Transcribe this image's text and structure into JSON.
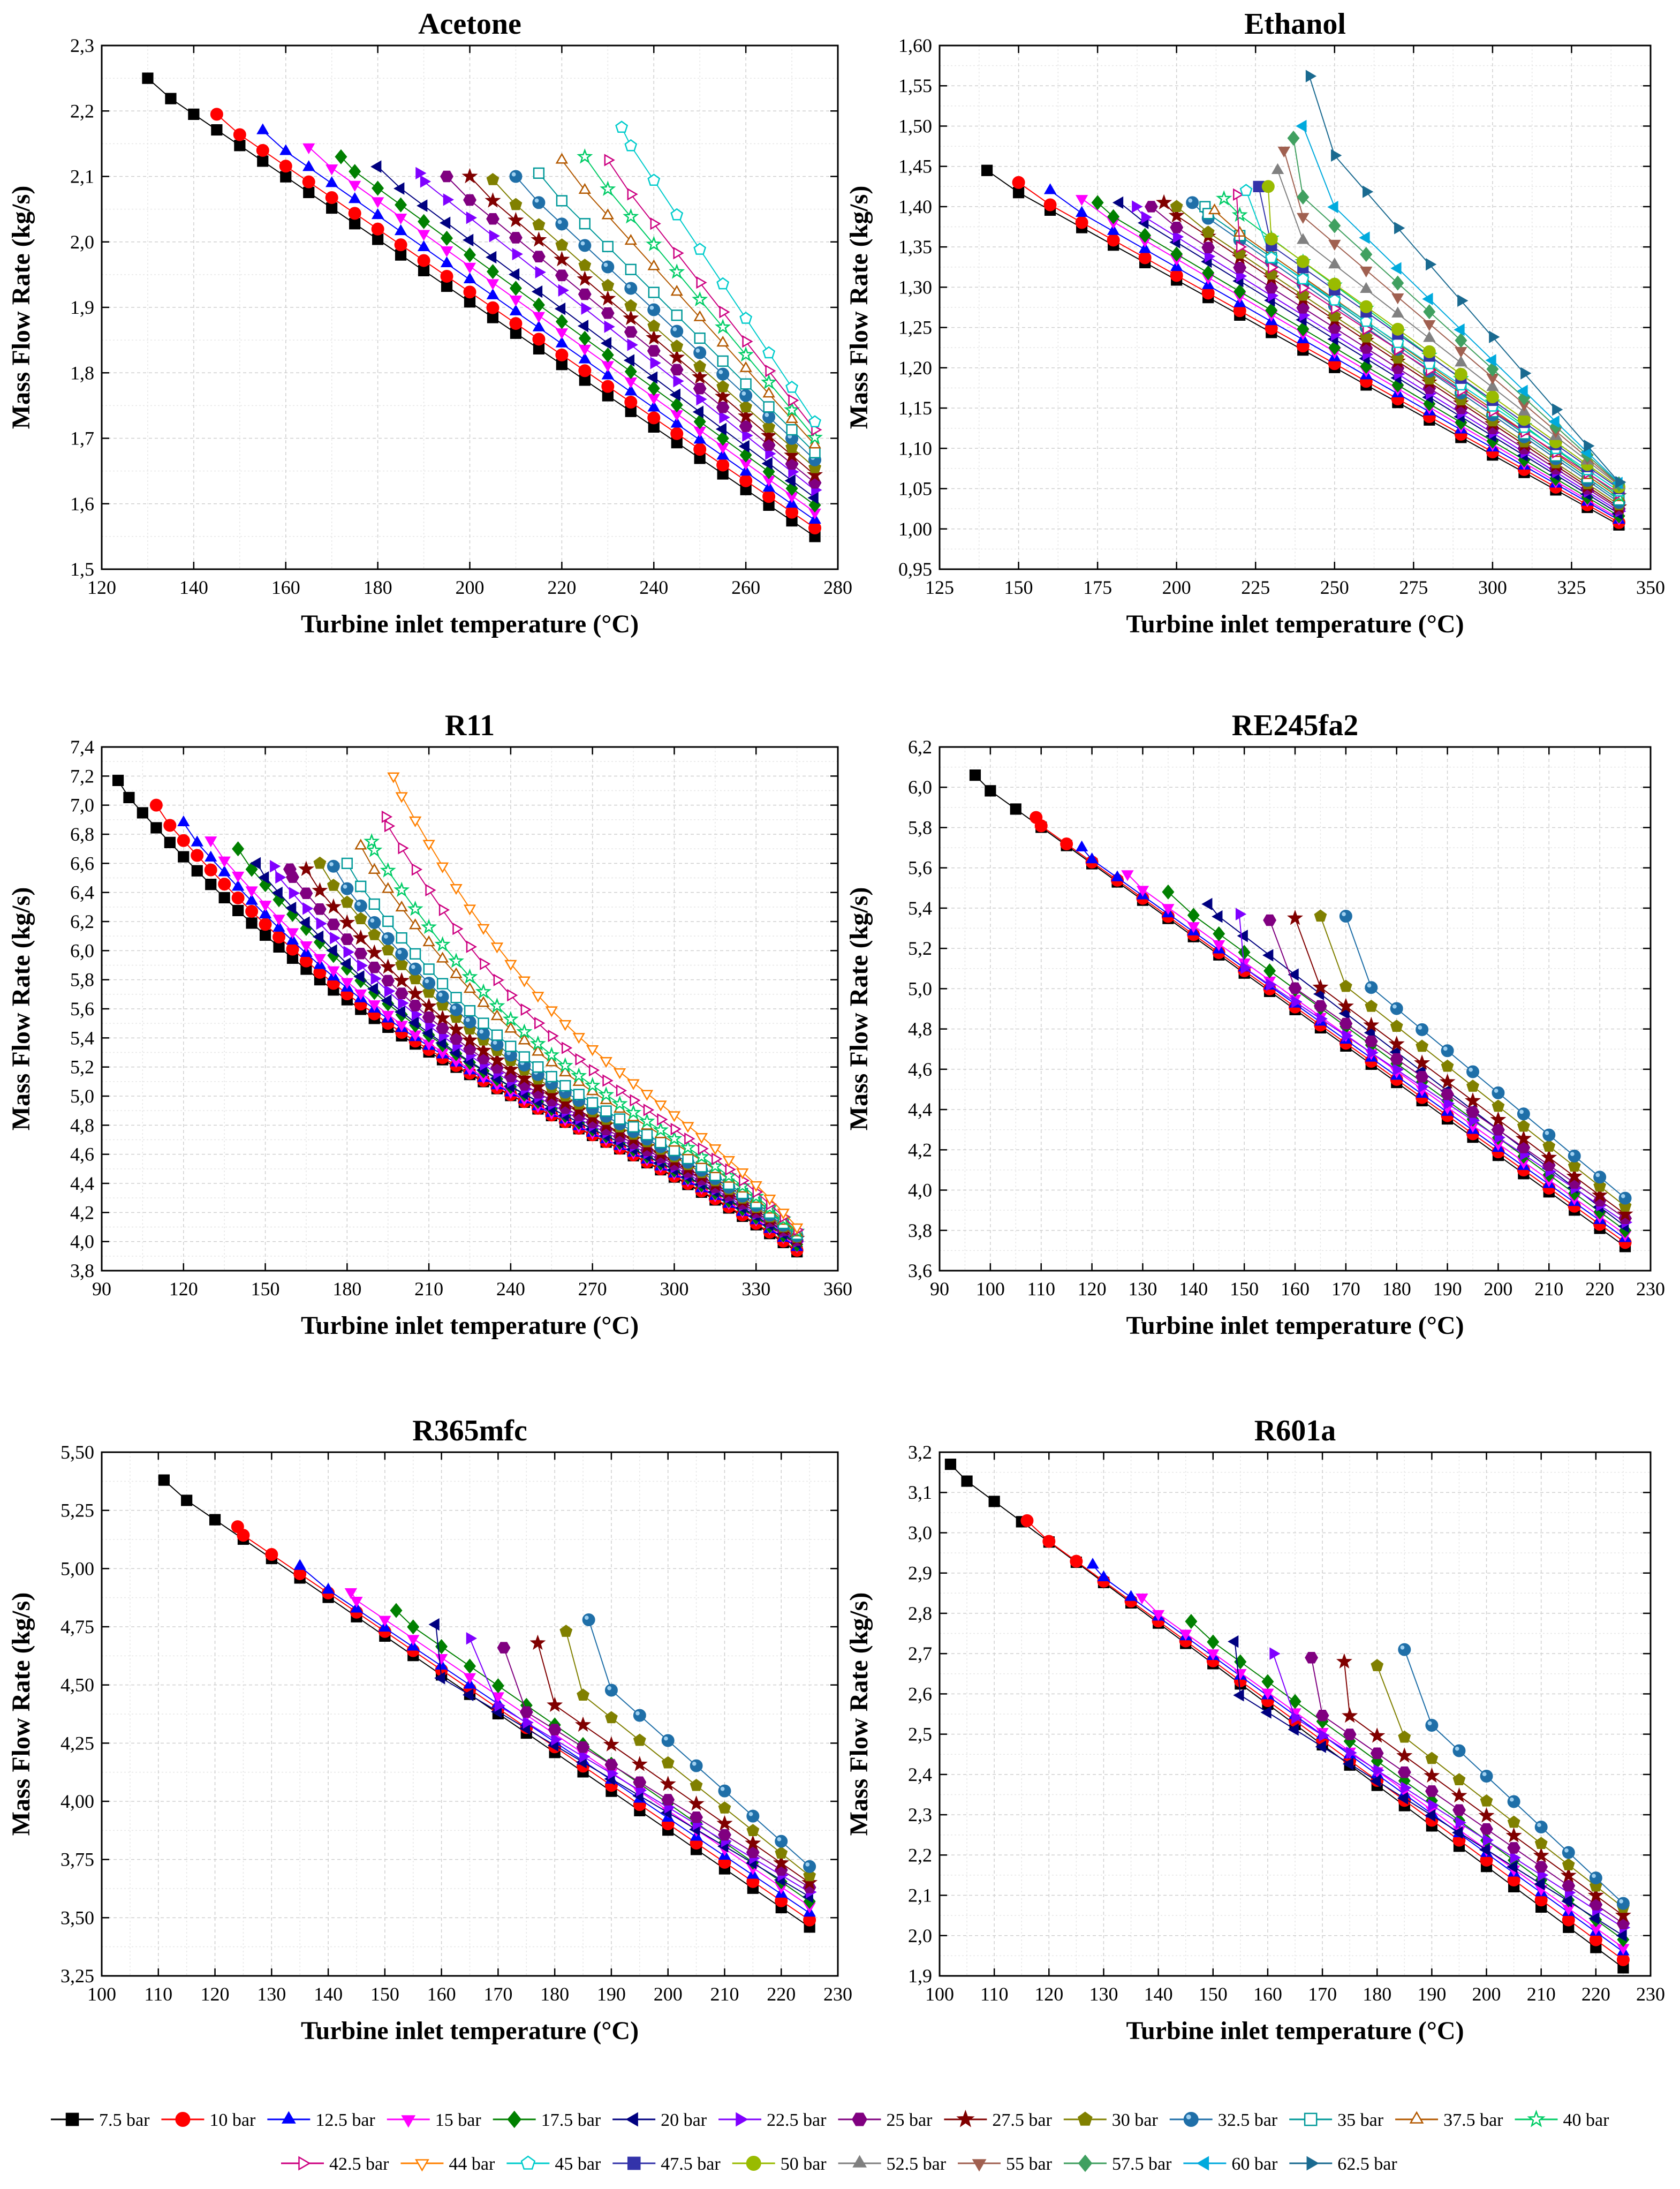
{
  "legend": {
    "items": [
      {
        "name": "7.5 bar",
        "color": "#000000",
        "marker": "square",
        "filled": true
      },
      {
        "name": "10 bar",
        "color": "#ff0000",
        "marker": "circle",
        "filled": true
      },
      {
        "name": "12.5 bar",
        "color": "#0000ff",
        "marker": "triangle-up",
        "filled": true
      },
      {
        "name": "15 bar",
        "color": "#ff00ff",
        "marker": "triangle-down",
        "filled": true
      },
      {
        "name": "17.5 bar",
        "color": "#008000",
        "marker": "diamond",
        "filled": true
      },
      {
        "name": "20 bar",
        "color": "#000080",
        "marker": "triangle-left",
        "filled": true
      },
      {
        "name": "22.5 bar",
        "color": "#8000ff",
        "marker": "triangle-right",
        "filled": true
      },
      {
        "name": "25 bar",
        "color": "#800080",
        "marker": "hexagon",
        "filled": true
      },
      {
        "name": "27.5 bar",
        "color": "#800000",
        "marker": "star",
        "filled": true
      },
      {
        "name": "30 bar",
        "color": "#808000",
        "marker": "pentagon",
        "filled": true
      },
      {
        "name": "32.5 bar",
        "color": "#1f6fa8",
        "marker": "sphere",
        "filled": true
      },
      {
        "name": "35 bar",
        "color": "#009999",
        "marker": "square",
        "filled": false
      },
      {
        "name": "37.5 bar",
        "color": "#b35900",
        "marker": "triangle-up",
        "filled": false
      },
      {
        "name": "40 bar",
        "color": "#00cc66",
        "marker": "star",
        "filled": false
      },
      {
        "name": "42.5 bar",
        "color": "#cc0080",
        "marker": "triangle-right",
        "filled": false
      },
      {
        "name": "44 bar",
        "color": "#ff8000",
        "marker": "triangle-down",
        "filled": false
      },
      {
        "name": "45 bar",
        "color": "#00cccc",
        "marker": "pentagon",
        "filled": false
      },
      {
        "name": "47.5 bar",
        "color": "#3333aa",
        "marker": "square",
        "filled": true
      },
      {
        "name": "50 bar",
        "color": "#99bb00",
        "marker": "circle",
        "filled": true
      },
      {
        "name": "52.5 bar",
        "color": "#808080",
        "marker": "triangle-up",
        "filled": true
      },
      {
        "name": "55 bar",
        "color": "#a06050",
        "marker": "triangle-down",
        "filled": true
      },
      {
        "name": "57.5 bar",
        "color": "#40a060",
        "marker": "diamond",
        "filled": true
      },
      {
        "name": "60 bar",
        "color": "#00aadd",
        "marker": "triangle-left",
        "filled": true
      },
      {
        "name": "62.5 bar",
        "color": "#1a6a90",
        "marker": "triangle-right",
        "filled": true
      }
    ]
  },
  "chart_data": [
    {
      "type": "scatter",
      "title": "Acetone",
      "xlabel": "Turbine inlet temperature (°C)",
      "ylabel": "Mass Flow Rate (kg/s)",
      "xlim": [
        120,
        280
      ],
      "ylim": [
        1.5,
        2.3
      ],
      "xticks": [
        "120",
        "140",
        "160",
        "180",
        "200",
        "220",
        "240",
        "260",
        "280"
      ],
      "yticks": [
        "1,5",
        "1,6",
        "1,7",
        "1,8",
        "1,9",
        "2,0",
        "2,1",
        "2,2",
        "2,3"
      ],
      "x_end": 275,
      "step": 5,
      "series": [
        {
          "name": "7.5 bar",
          "start_x": 130,
          "start_y": 2.25,
          "end_y": 1.55
        },
        {
          "name": "10 bar",
          "start_x": 145,
          "start_y": 2.195,
          "end_y": 1.563
        },
        {
          "name": "12.5 bar",
          "start_x": 155,
          "start_y": 2.17,
          "end_y": 1.575
        },
        {
          "name": "15 bar",
          "start_x": 165,
          "start_y": 2.145,
          "end_y": 1.587
        },
        {
          "name": "17.5 bar",
          "start_x": 172,
          "start_y": 2.13,
          "end_y": 1.598
        },
        {
          "name": "20 bar",
          "start_x": 180,
          "start_y": 2.115,
          "end_y": 1.609
        },
        {
          "name": "22.5 bar",
          "start_x": 189,
          "start_y": 2.105,
          "end_y": 1.621
        },
        {
          "name": "25 bar",
          "start_x": 195,
          "start_y": 2.1,
          "end_y": 1.632
        },
        {
          "name": "27.5 bar",
          "start_x": 200,
          "start_y": 2.1,
          "end_y": 1.644
        },
        {
          "name": "30 bar",
          "start_x": 205,
          "start_y": 2.095,
          "end_y": 1.655
        },
        {
          "name": "32.5 bar",
          "start_x": 210,
          "start_y": 2.1,
          "end_y": 1.667
        },
        {
          "name": "35 bar",
          "start_x": 215,
          "start_y": 2.105,
          "end_y": 1.678
        },
        {
          "name": "37.5 bar",
          "start_x": 220,
          "start_y": 2.125,
          "end_y": 1.69
        },
        {
          "name": "40 bar",
          "start_x": 225,
          "start_y": 2.13,
          "end_y": 1.701
        },
        {
          "name": "42.5 bar",
          "start_x": 230,
          "start_y": 2.125,
          "end_y": 1.713
        },
        {
          "name": "45 bar",
          "start_x": 233,
          "start_y": 2.175,
          "end_y": 1.725
        }
      ]
    },
    {
      "type": "scatter",
      "title": "Ethanol",
      "xlabel": "Turbine inlet temperature (°C)",
      "ylabel": "Mass Flow Rate (kg/s)",
      "xlim": [
        125,
        350
      ],
      "ylim": [
        0.95,
        1.6
      ],
      "xticks": [
        "125",
        "150",
        "175",
        "200",
        "225",
        "250",
        "275",
        "300",
        "325",
        "350"
      ],
      "yticks": [
        "0,95",
        "1,00",
        "1,05",
        "1,10",
        "1,15",
        "1,20",
        "1,25",
        "1,30",
        "1,35",
        "1,40",
        "1,45",
        "1,50",
        "1,55",
        "1,60"
      ],
      "x_end": 340,
      "step": 10,
      "series": [
        {
          "name": "7.5 bar",
          "start_x": 140,
          "start_y": 1.445,
          "end_y": 1.005
        },
        {
          "name": "10 bar",
          "start_x": 150,
          "start_y": 1.43,
          "end_y": 1.008
        },
        {
          "name": "12.5 bar",
          "start_x": 160,
          "start_y": 1.42,
          "end_y": 1.011
        },
        {
          "name": "15 bar",
          "start_x": 170,
          "start_y": 1.41,
          "end_y": 1.013
        },
        {
          "name": "17.5 bar",
          "start_x": 175,
          "start_y": 1.405,
          "end_y": 1.016
        },
        {
          "name": "20 bar",
          "start_x": 182,
          "start_y": 1.405,
          "end_y": 1.019
        },
        {
          "name": "22.5 bar",
          "start_x": 187,
          "start_y": 1.4,
          "end_y": 1.022
        },
        {
          "name": "25 bar",
          "start_x": 192,
          "start_y": 1.4,
          "end_y": 1.025
        },
        {
          "name": "27.5 bar",
          "start_x": 196,
          "start_y": 1.405,
          "end_y": 1.027
        },
        {
          "name": "30 bar",
          "start_x": 200,
          "start_y": 1.4,
          "end_y": 1.03
        },
        {
          "name": "32.5 bar",
          "start_x": 205,
          "start_y": 1.405,
          "end_y": 1.033
        },
        {
          "name": "35 bar",
          "start_x": 209,
          "start_y": 1.4,
          "end_y": 1.036
        },
        {
          "name": "37.5 bar",
          "start_x": 212,
          "start_y": 1.395,
          "end_y": 1.039
        },
        {
          "name": "40 bar",
          "start_x": 215,
          "start_y": 1.41,
          "end_y": 1.041
        },
        {
          "name": "42.5 bar",
          "start_x": 219,
          "start_y": 1.415,
          "end_y": 1.044
        },
        {
          "name": "45 bar",
          "start_x": 222,
          "start_y": 1.42,
          "end_y": 1.047
        },
        {
          "name": "47.5 bar",
          "start_x": 226,
          "start_y": 1.425,
          "end_y": 1.05
        },
        {
          "name": "50 bar",
          "start_x": 229,
          "start_y": 1.425,
          "end_y": 1.052
        },
        {
          "name": "52.5 bar",
          "start_x": 232,
          "start_y": 1.445,
          "end_y": 1.054
        },
        {
          "name": "55 bar",
          "start_x": 234,
          "start_y": 1.47,
          "end_y": 1.055
        },
        {
          "name": "57.5 bar",
          "start_x": 237,
          "start_y": 1.485,
          "end_y": 1.056
        },
        {
          "name": "60 bar",
          "start_x": 240,
          "start_y": 1.5,
          "end_y": 1.057
        },
        {
          "name": "62.5 bar",
          "start_x": 242,
          "start_y": 1.562,
          "end_y": 1.058
        }
      ]
    },
    {
      "type": "scatter",
      "title": "R11",
      "xlabel": "Turbine inlet temperature (°C)",
      "ylabel": "Mass Flow Rate (kg/s)",
      "xlim": [
        90,
        360
      ],
      "ylim": [
        3.8,
        7.4
      ],
      "xticks": [
        "90",
        "120",
        "150",
        "180",
        "210",
        "240",
        "270",
        "300",
        "330",
        "360"
      ],
      "yticks": [
        "3,8",
        "4,0",
        "4,2",
        "4,4",
        "4,6",
        "4,8",
        "5,0",
        "5,2",
        "5,4",
        "5,6",
        "5,8",
        "6,0",
        "6,2",
        "6,4",
        "6,6",
        "6,8",
        "7,0",
        "7,2",
        "7,4"
      ],
      "x_end": 345,
      "step": 5,
      "curve": 0.6,
      "series": [
        {
          "name": "7.5 bar",
          "start_x": 96,
          "start_y": 7.17,
          "end_y": 3.93
        },
        {
          "name": "10 bar",
          "start_x": 110,
          "start_y": 7.0,
          "end_y": 3.94
        },
        {
          "name": "12.5 bar",
          "start_x": 120,
          "start_y": 6.88,
          "end_y": 3.96
        },
        {
          "name": "15 bar",
          "start_x": 130,
          "start_y": 6.76,
          "end_y": 3.97
        },
        {
          "name": "17.5 bar",
          "start_x": 140,
          "start_y": 6.7,
          "end_y": 3.98
        },
        {
          "name": "20 bar",
          "start_x": 147,
          "start_y": 6.6,
          "end_y": 3.99
        },
        {
          "name": "22.5 bar",
          "start_x": 153,
          "start_y": 6.58,
          "end_y": 4.0
        },
        {
          "name": "25 bar",
          "start_x": 159,
          "start_y": 6.56,
          "end_y": 4.01
        },
        {
          "name": "27.5 bar",
          "start_x": 165,
          "start_y": 6.56,
          "end_y": 4.02
        },
        {
          "name": "30 bar",
          "start_x": 170,
          "start_y": 6.6,
          "end_y": 4.03
        },
        {
          "name": "32.5 bar",
          "start_x": 175,
          "start_y": 6.58,
          "end_y": 4.04
        },
        {
          "name": "35 bar",
          "start_x": 180,
          "start_y": 6.6,
          "end_y": 4.05
        },
        {
          "name": "37.5 bar",
          "start_x": 185,
          "start_y": 6.72,
          "end_y": 4.06
        },
        {
          "name": "40 bar",
          "start_x": 189,
          "start_y": 6.75,
          "end_y": 4.07
        },
        {
          "name": "42.5 bar",
          "start_x": 194,
          "start_y": 6.92,
          "end_y": 4.08
        },
        {
          "name": "44 bar",
          "start_x": 197,
          "start_y": 7.2,
          "end_y": 4.1
        }
      ]
    },
    {
      "type": "scatter",
      "title": "RE245fa2",
      "xlabel": "Turbine inlet temperature (°C)",
      "ylabel": "Mass Flow Rate (kg/s)",
      "xlim": [
        90,
        230
      ],
      "ylim": [
        3.6,
        6.2
      ],
      "xticks": [
        "90",
        "100",
        "110",
        "120",
        "130",
        "140",
        "150",
        "160",
        "170",
        "180",
        "190",
        "200",
        "210",
        "220",
        "230"
      ],
      "yticks": [
        "3,6",
        "3,8",
        "4,0",
        "4,2",
        "4,4",
        "4,6",
        "4,8",
        "5,0",
        "5,2",
        "5,4",
        "5,6",
        "5,8",
        "6,0",
        "6,2"
      ],
      "x_end": 225,
      "step": 5,
      "series": [
        {
          "name": "7.5 bar",
          "start_x": 97,
          "start_y": 6.06,
          "end_y": 3.72
        },
        {
          "name": "10 bar",
          "start_x": 109,
          "start_y": 5.85,
          "end_y": 3.74
        },
        {
          "name": "12.5 bar",
          "start_x": 118,
          "start_y": 5.7,
          "end_y": 3.76
        },
        {
          "name": "15 bar",
          "start_x": 127,
          "start_y": 5.57,
          "end_y": 3.78
        },
        {
          "name": "17.5 bar",
          "start_x": 135,
          "start_y": 5.48,
          "end_y": 3.8
        },
        {
          "name": "20 bar",
          "start_x": 143,
          "start_y": 5.42,
          "end_y": 3.82
        },
        {
          "name": "22.5 bar",
          "start_x": 149,
          "start_y": 5.37,
          "end_y": 3.84
        },
        {
          "name": "25 bar",
          "start_x": 155,
          "start_y": 5.34,
          "end_y": 3.86
        },
        {
          "name": "27.5 bar",
          "start_x": 160,
          "start_y": 5.35,
          "end_y": 3.88
        },
        {
          "name": "30 bar",
          "start_x": 165,
          "start_y": 5.36,
          "end_y": 3.92
        },
        {
          "name": "32.5 bar",
          "start_x": 170,
          "start_y": 5.36,
          "end_y": 3.96
        }
      ]
    },
    {
      "type": "scatter",
      "title": "R365mfc",
      "xlabel": "Turbine inlet temperature (°C)",
      "ylabel": "Mass Flow Rate (kg/s)",
      "xlim": [
        100,
        230
      ],
      "ylim": [
        3.25,
        5.5
      ],
      "xticks": [
        "100",
        "110",
        "120",
        "130",
        "140",
        "150",
        "160",
        "170",
        "180",
        "190",
        "200",
        "210",
        "220",
        "230"
      ],
      "yticks": [
        "3,25",
        "3,50",
        "3,75",
        "4,00",
        "4,25",
        "4,50",
        "4,75",
        "5,00",
        "5,25",
        "5,50"
      ],
      "x_end": 225,
      "step": 5,
      "series": [
        {
          "name": "7.5 bar",
          "start_x": 111,
          "start_y": 5.38,
          "end_y": 3.46
        },
        {
          "name": "10 bar",
          "start_x": 124,
          "start_y": 5.18,
          "end_y": 3.49
        },
        {
          "name": "12.5 bar",
          "start_x": 135,
          "start_y": 5.01,
          "end_y": 3.52
        },
        {
          "name": "15 bar",
          "start_x": 144,
          "start_y": 4.9,
          "end_y": 3.55
        },
        {
          "name": "17.5 bar",
          "start_x": 152,
          "start_y": 4.82,
          "end_y": 3.57
        },
        {
          "name": "20 bar",
          "start_x": 159,
          "start_y": 4.76,
          "end_y": 3.59
        },
        {
          "name": "22.5 bar",
          "start_x": 165,
          "start_y": 4.7,
          "end_y": 3.61
        },
        {
          "name": "25 bar",
          "start_x": 171,
          "start_y": 4.66,
          "end_y": 3.63
        },
        {
          "name": "27.5 bar",
          "start_x": 177,
          "start_y": 4.68,
          "end_y": 3.65
        },
        {
          "name": "30 bar",
          "start_x": 182,
          "start_y": 4.73,
          "end_y": 3.68
        },
        {
          "name": "32.5 bar",
          "start_x": 186,
          "start_y": 4.78,
          "end_y": 3.72
        }
      ]
    },
    {
      "type": "scatter",
      "title": "R601a",
      "xlabel": "Turbine inlet temperature (°C)",
      "ylabel": "Mass Flow Rate (kg/s)",
      "xlim": [
        100,
        230
      ],
      "ylim": [
        1.9,
        3.2
      ],
      "xticks": [
        "100",
        "110",
        "120",
        "130",
        "140",
        "150",
        "160",
        "170",
        "180",
        "190",
        "200",
        "210",
        "220",
        "230"
      ],
      "yticks": [
        "1,9",
        "2,0",
        "2,1",
        "2,2",
        "2,3",
        "2,4",
        "2,5",
        "2,6",
        "2,7",
        "2,8",
        "2,9",
        "3,0",
        "3,1",
        "3,2"
      ],
      "x_end": 225,
      "step": 5,
      "series": [
        {
          "name": "7.5 bar",
          "start_x": 102,
          "start_y": 3.17,
          "end_y": 1.92
        },
        {
          "name": "10 bar",
          "start_x": 116,
          "start_y": 3.03,
          "end_y": 1.94
        },
        {
          "name": "12.5 bar",
          "start_x": 128,
          "start_y": 2.92,
          "end_y": 1.96
        },
        {
          "name": "15 bar",
          "start_x": 137,
          "start_y": 2.84,
          "end_y": 1.97
        },
        {
          "name": "17.5 bar",
          "start_x": 146,
          "start_y": 2.78,
          "end_y": 1.99
        },
        {
          "name": "20 bar",
          "start_x": 154,
          "start_y": 2.73,
          "end_y": 2.0
        },
        {
          "name": "22.5 bar",
          "start_x": 161,
          "start_y": 2.7,
          "end_y": 2.02
        },
        {
          "name": "25 bar",
          "start_x": 168,
          "start_y": 2.69,
          "end_y": 2.03
        },
        {
          "name": "27.5 bar",
          "start_x": 174,
          "start_y": 2.68,
          "end_y": 2.05
        },
        {
          "name": "30 bar",
          "start_x": 180,
          "start_y": 2.67,
          "end_y": 2.07
        },
        {
          "name": "32.5 bar",
          "start_x": 185,
          "start_y": 2.71,
          "end_y": 2.08
        }
      ]
    }
  ]
}
